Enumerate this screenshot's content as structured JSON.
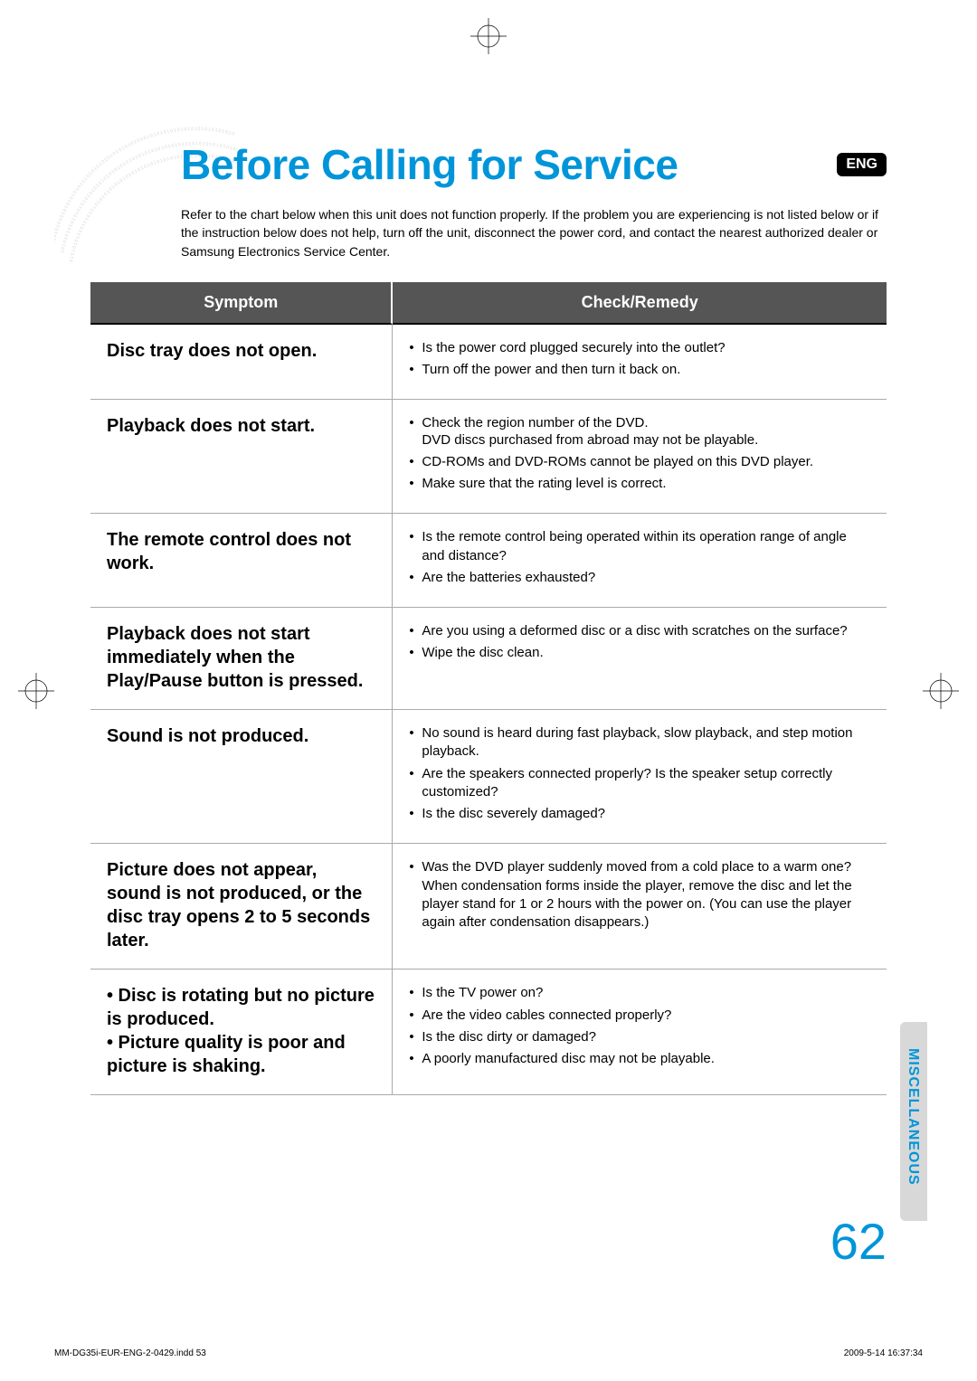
{
  "colors": {
    "accent": "#0095d9",
    "header_bg": "#555555",
    "header_text": "#ffffff",
    "body_text": "#000000",
    "border": "#aaaaaa",
    "sidetab_bg": "#d8d8d8"
  },
  "typography": {
    "title_fontsize": 46,
    "symptom_fontsize": 20,
    "remedy_fontsize": 15,
    "intro_fontsize": 14,
    "pagenum_fontsize": 56
  },
  "lang_badge": "ENG",
  "title": "Before Calling for Service",
  "intro": "Refer to the chart below when this unit does not function properly. If the problem you are experiencing is not listed below or if the instruction below does not help, turn off the unit, disconnect the power cord, and contact the nearest authorized dealer or Samsung Electronics Service Center.",
  "table": {
    "headers": {
      "symptom": "Symptom",
      "remedy": "Check/Remedy"
    },
    "rows": [
      {
        "symptom": "Disc tray does not open.",
        "remedies": [
          "Is the power cord plugged securely into the outlet?",
          "Turn off the power and then turn it back on."
        ]
      },
      {
        "symptom": "Playback does not start.",
        "remedies": [
          "Check the region number of the DVD.\nDVD discs purchased from abroad may not be playable.",
          "CD-ROMs and DVD-ROMs cannot be played on this DVD player.",
          "Make sure that the rating level is correct."
        ]
      },
      {
        "symptom": "The remote control does not work.",
        "remedies": [
          "Is the remote control being operated within its operation range of angle and distance?",
          "Are the batteries exhausted?"
        ]
      },
      {
        "symptom": "Playback does not start immediately when the Play/Pause button is pressed.",
        "remedies": [
          "Are you using a deformed disc or a disc with scratches on the surface?",
          "Wipe the disc clean."
        ]
      },
      {
        "symptom": "Sound is not produced.",
        "remedies": [
          "No sound is heard during fast playback, slow playback, and step motion playback.",
          "Are the speakers connected properly? Is the speaker setup correctly customized?",
          "Is the disc severely damaged?"
        ]
      },
      {
        "symptom": "Picture does not appear, sound is not produced, or the disc tray opens 2 to 5 seconds later.",
        "remedies": [
          "Was the DVD player suddenly moved from a cold place to a warm one? When condensation forms inside the player, remove the disc and let the player stand for 1 or 2 hours with the power on. (You can use the player again after condensation disappears.)"
        ]
      },
      {
        "symptom": "• Disc is rotating but no picture is produced.\n• Picture quality is poor and picture is shaking.",
        "remedies": [
          "Is the TV power on?",
          "Are the video cables connected properly?",
          "Is the disc dirty or damaged?",
          "A poorly manufactured disc may not be playable."
        ]
      }
    ]
  },
  "side_tab": "MISCELLANEOUS",
  "page_number": "62",
  "footer": {
    "left": "MM-DG35i-EUR-ENG-2-0429.indd   53",
    "right": "2009-5-14   16:37:34"
  }
}
